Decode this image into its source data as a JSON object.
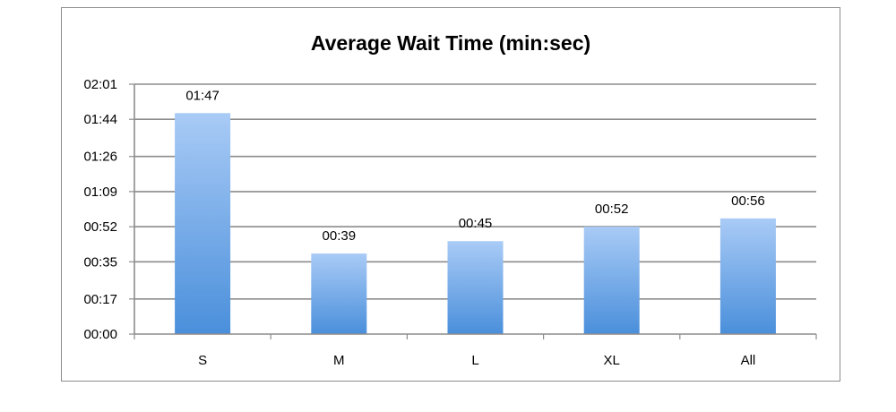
{
  "chart_data": {
    "type": "bar",
    "title": "Average Wait Time (min:sec)",
    "xlabel": "",
    "ylabel": "",
    "categories": [
      "S",
      "M",
      "L",
      "XL",
      "All"
    ],
    "values": [
      107,
      39,
      45,
      52,
      56
    ],
    "value_labels": [
      "01:47",
      "00:39",
      "00:45",
      "00:52",
      "00:56"
    ],
    "ylim": [
      0,
      121
    ],
    "y_ticks": [
      0,
      17,
      35,
      52,
      69,
      86,
      104,
      121
    ],
    "y_tick_labels": [
      "00:00",
      "00:17",
      "00:35",
      "00:52",
      "01:09",
      "01:26",
      "01:44",
      "02:01"
    ],
    "grid": true,
    "legend": "none",
    "bar_color_top": "#a9cbf6",
    "bar_color_bottom": "#4a8fdb",
    "grid_color": "#8c8c8c"
  }
}
